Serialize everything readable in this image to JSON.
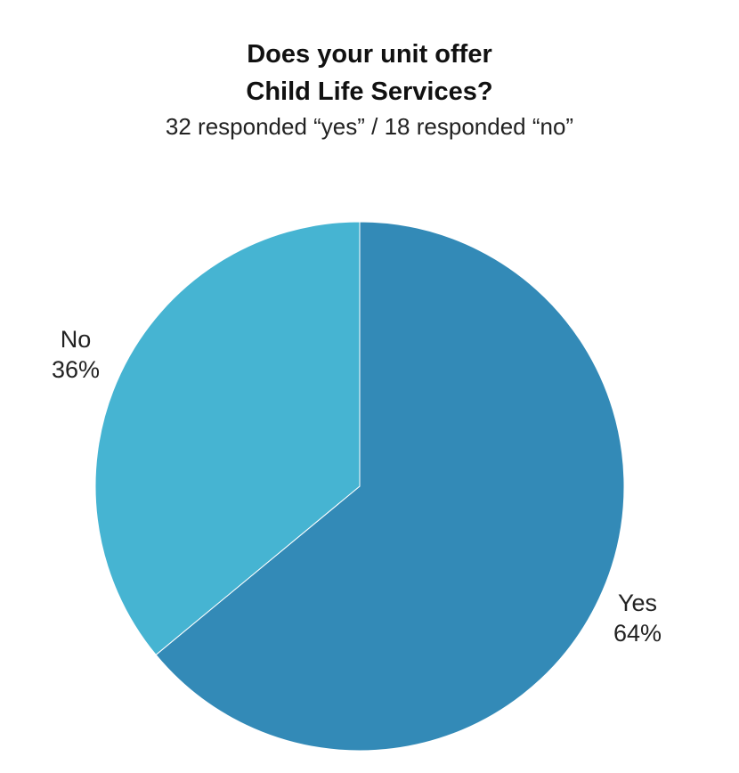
{
  "chart_data": {
    "type": "pie",
    "title": [
      "Does your unit offer",
      "Child Life Services?"
    ],
    "subtitle": "32 responded “yes” / 18 responded “no”",
    "slices": [
      {
        "name": "Yes",
        "value": 64,
        "label": "64%",
        "color": "#338ab7"
      },
      {
        "name": "No",
        "value": 36,
        "label": "36%",
        "color": "#46b4d2"
      }
    ]
  }
}
